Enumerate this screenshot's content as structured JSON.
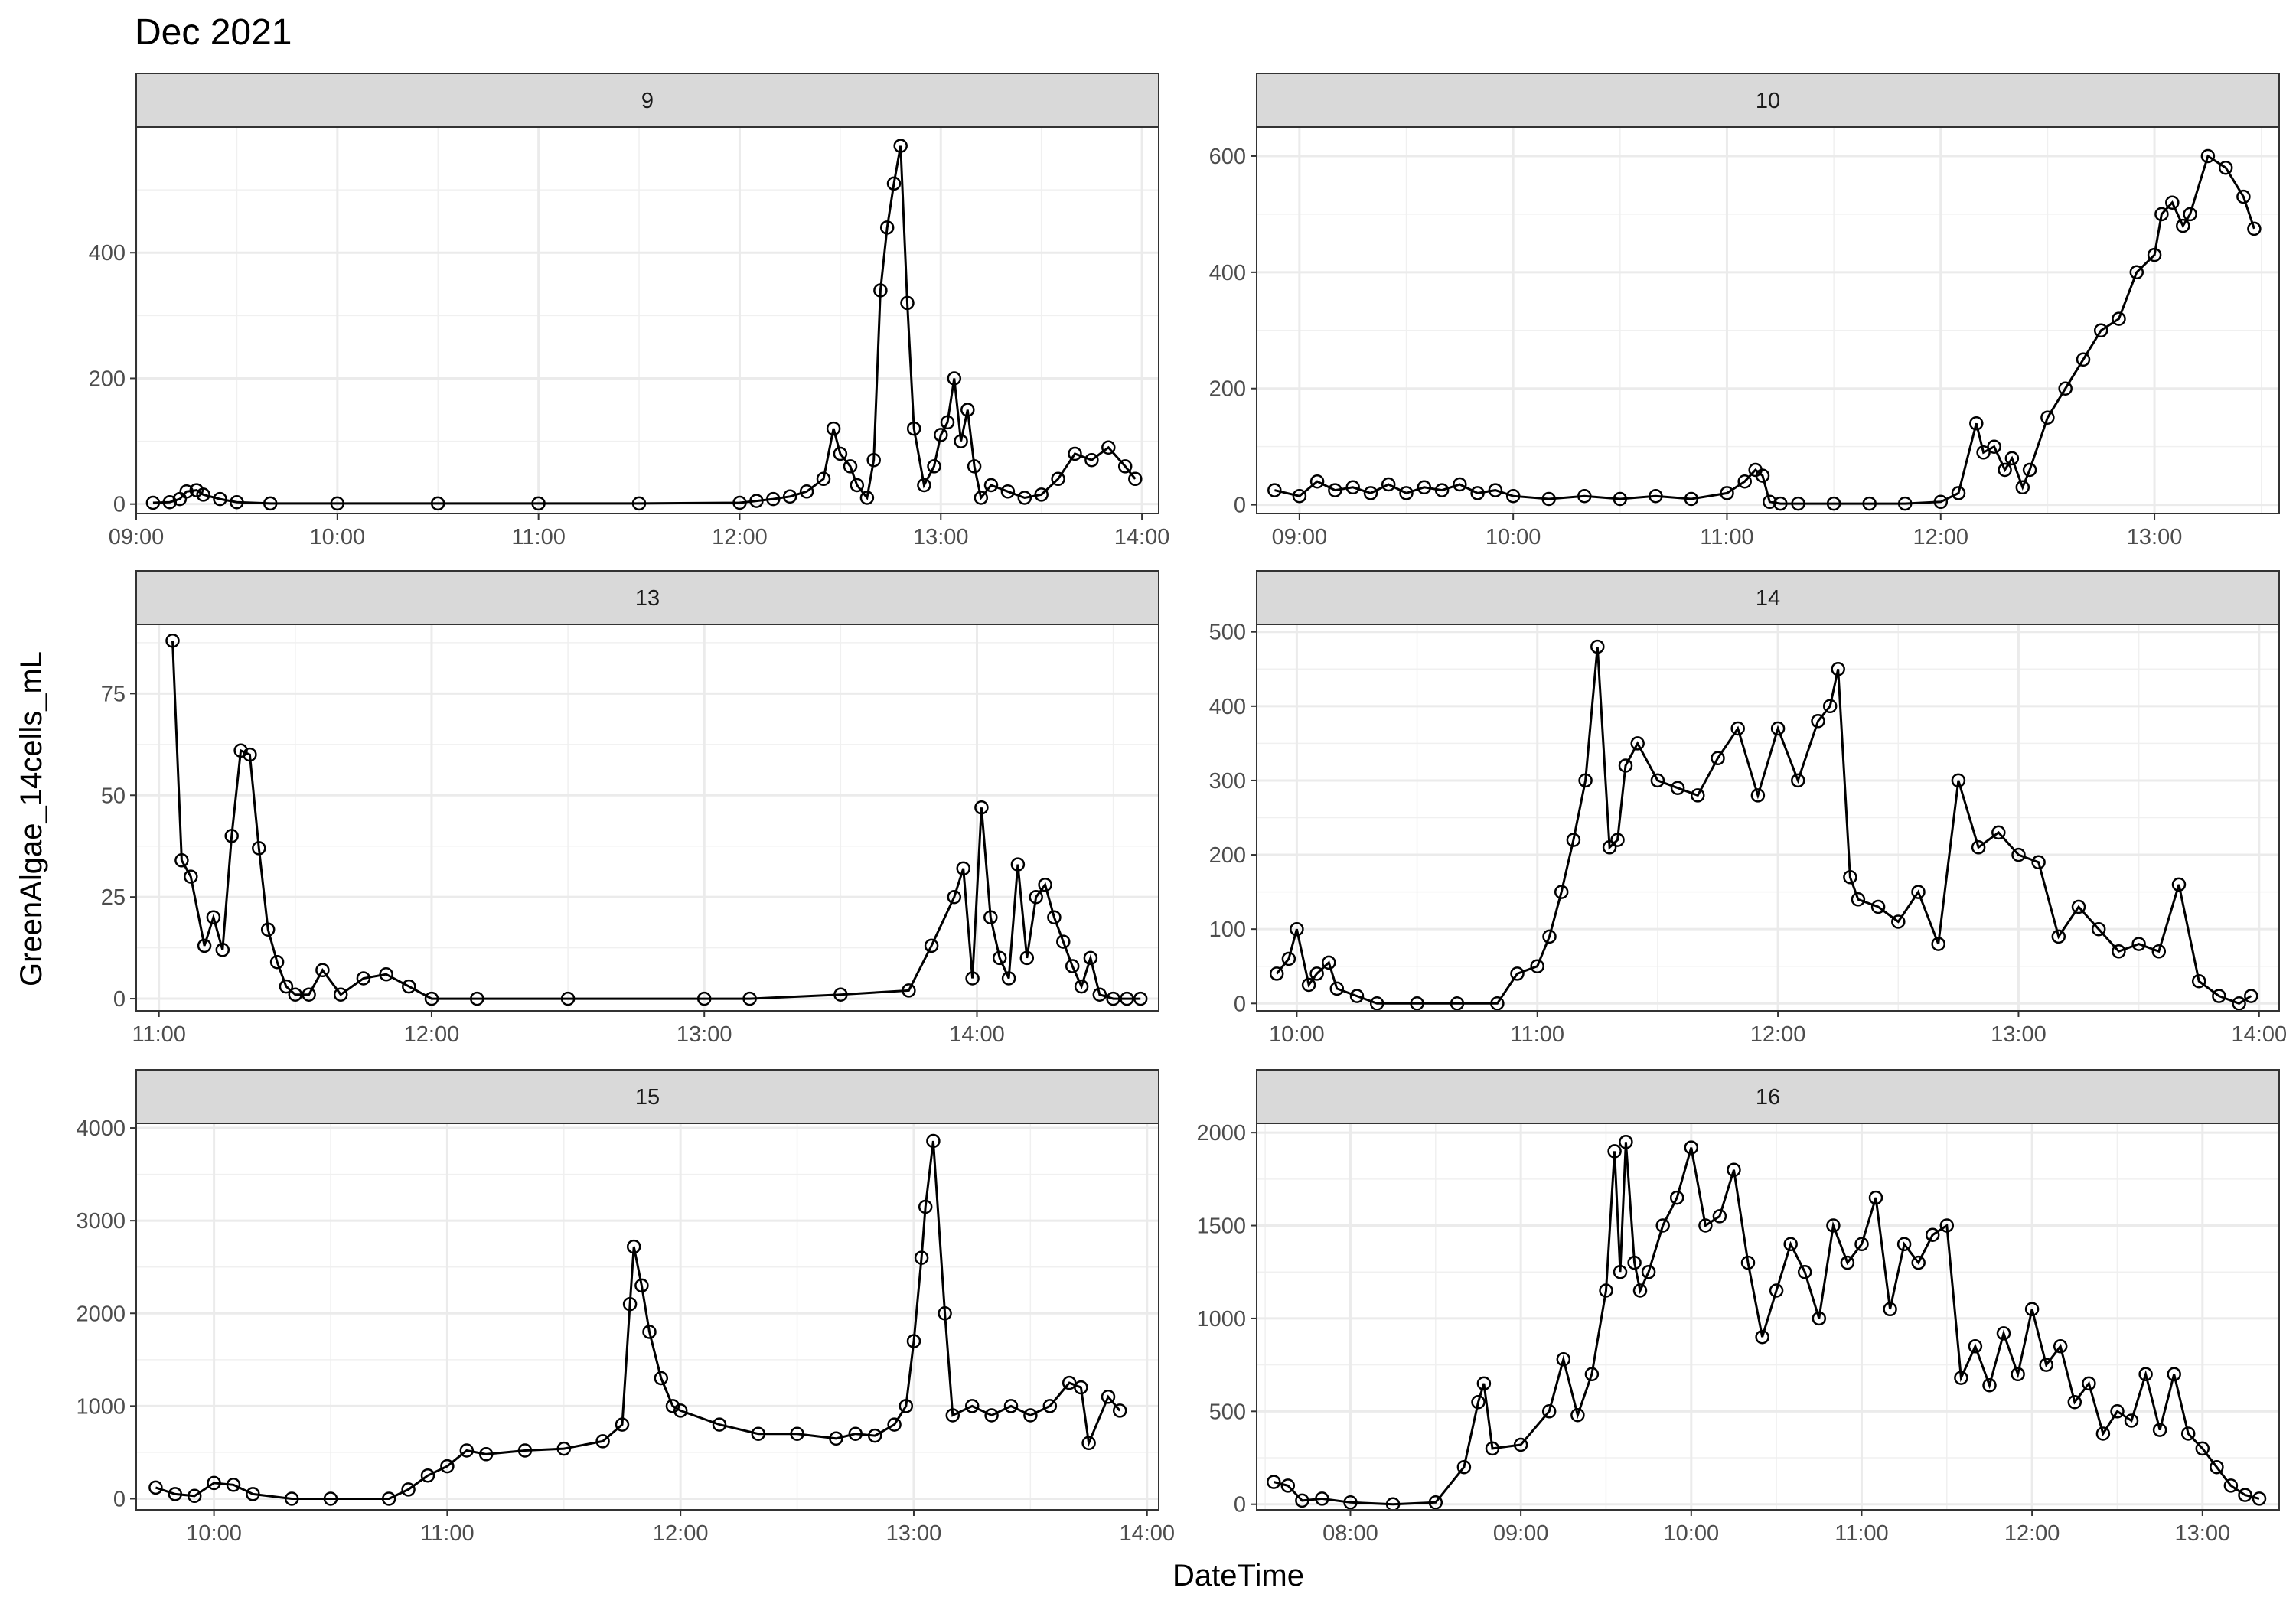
{
  "figure": {
    "title": "Dec 2021",
    "xlabel": "DateTime",
    "ylabel": "GreenAlgae_14cells_mL"
  },
  "chart_data": [
    {
      "type": "line",
      "panel": "9",
      "markers": "open-circle",
      "xlim": [
        "09:00",
        "14:05"
      ],
      "ylim": [
        -15,
        600
      ],
      "yticks": [
        0,
        200,
        400
      ],
      "xticks": [
        "09:00",
        "10:00",
        "11:00",
        "12:00",
        "13:00",
        "14:00"
      ],
      "series": [
        {
          "x": [
            "09:05",
            "09:10",
            "09:13",
            "09:15",
            "09:18",
            "09:20",
            "09:25",
            "09:30",
            "09:40",
            "10:00",
            "10:30",
            "11:00",
            "11:30",
            "12:00",
            "12:05",
            "12:10",
            "12:15",
            "12:20",
            "12:25",
            "12:28",
            "12:30",
            "12:33",
            "12:35",
            "12:38",
            "12:40",
            "12:42",
            "12:44",
            "12:46",
            "12:48",
            "12:50",
            "12:52",
            "12:55",
            "12:58",
            "13:00",
            "13:02",
            "13:04",
            "13:06",
            "13:08",
            "13:10",
            "13:12",
            "13:15",
            "13:20",
            "13:25",
            "13:30",
            "13:35",
            "13:40",
            "13:45",
            "13:50",
            "13:55",
            "13:58"
          ],
          "values": [
            2,
            3,
            8,
            20,
            22,
            15,
            8,
            3,
            1,
            1,
            1,
            1,
            1,
            2,
            5,
            8,
            12,
            20,
            40,
            120,
            80,
            60,
            30,
            10,
            70,
            340,
            440,
            510,
            570,
            320,
            120,
            30,
            60,
            110,
            130,
            200,
            100,
            150,
            60,
            10,
            30,
            20,
            10,
            15,
            40,
            80,
            70,
            90,
            60,
            40
          ]
        }
      ]
    },
    {
      "type": "line",
      "panel": "10",
      "markers": "open-circle",
      "xlim": [
        "08:48",
        "13:35"
      ],
      "ylim": [
        -15,
        650
      ],
      "yticks": [
        0,
        200,
        400,
        600
      ],
      "xticks": [
        "09:00",
        "10:00",
        "11:00",
        "12:00",
        "13:00"
      ],
      "series": [
        {
          "x": [
            "08:53",
            "09:00",
            "09:05",
            "09:10",
            "09:15",
            "09:20",
            "09:25",
            "09:30",
            "09:35",
            "09:40",
            "09:45",
            "09:50",
            "09:55",
            "10:00",
            "10:10",
            "10:20",
            "10:30",
            "10:40",
            "10:50",
            "11:00",
            "11:05",
            "11:08",
            "11:10",
            "11:12",
            "11:15",
            "11:20",
            "11:30",
            "11:40",
            "11:50",
            "12:00",
            "12:05",
            "12:10",
            "12:12",
            "12:15",
            "12:18",
            "12:20",
            "12:23",
            "12:25",
            "12:30",
            "12:35",
            "12:40",
            "12:45",
            "12:50",
            "12:55",
            "13:00",
            "13:02",
            "13:05",
            "13:08",
            "13:10",
            "13:15",
            "13:20",
            "13:25",
            "13:28"
          ],
          "values": [
            25,
            15,
            40,
            25,
            30,
            20,
            35,
            20,
            30,
            25,
            35,
            20,
            25,
            15,
            10,
            15,
            10,
            15,
            10,
            20,
            40,
            60,
            50,
            5,
            2,
            2,
            2,
            2,
            2,
            5,
            20,
            140,
            90,
            100,
            60,
            80,
            30,
            60,
            150,
            200,
            250,
            300,
            320,
            400,
            430,
            500,
            520,
            480,
            500,
            600,
            580,
            530,
            475
          ]
        }
      ]
    },
    {
      "type": "line",
      "panel": "13",
      "markers": "open-circle",
      "xlim": [
        "10:55",
        "14:40"
      ],
      "ylim": [
        -3,
        92
      ],
      "yticks": [
        0,
        25,
        50,
        75
      ],
      "xticks": [
        "11:00",
        "12:00",
        "13:00",
        "14:00"
      ],
      "series": [
        {
          "x": [
            "11:03",
            "11:05",
            "11:07",
            "11:10",
            "11:12",
            "11:14",
            "11:16",
            "11:18",
            "11:20",
            "11:22",
            "11:24",
            "11:26",
            "11:28",
            "11:30",
            "11:33",
            "11:36",
            "11:40",
            "11:45",
            "11:50",
            "11:55",
            "12:00",
            "12:10",
            "12:30",
            "13:00",
            "13:10",
            "13:30",
            "13:45",
            "13:50",
            "13:55",
            "13:57",
            "13:59",
            "14:01",
            "14:03",
            "14:05",
            "14:07",
            "14:09",
            "14:11",
            "14:13",
            "14:15",
            "14:17",
            "14:19",
            "14:21",
            "14:23",
            "14:25",
            "14:27",
            "14:30",
            "14:33",
            "14:36"
          ],
          "values": [
            88,
            34,
            30,
            13,
            20,
            12,
            40,
            61,
            60,
            37,
            17,
            9,
            3,
            1,
            1,
            7,
            1,
            5,
            6,
            3,
            0,
            0,
            0,
            0,
            0,
            1,
            2,
            13,
            25,
            32,
            5,
            47,
            20,
            10,
            5,
            33,
            10,
            25,
            28,
            20,
            14,
            8,
            3,
            10,
            1,
            0,
            0,
            0
          ]
        }
      ]
    },
    {
      "type": "line",
      "panel": "14",
      "markers": "open-circle",
      "xlim": [
        "09:50",
        "14:05"
      ],
      "ylim": [
        -10,
        510
      ],
      "yticks": [
        0,
        100,
        200,
        300,
        400,
        500
      ],
      "xticks": [
        "10:00",
        "11:00",
        "12:00",
        "13:00",
        "14:00"
      ],
      "series": [
        {
          "x": [
            "09:55",
            "09:58",
            "10:00",
            "10:03",
            "10:05",
            "10:08",
            "10:10",
            "10:15",
            "10:20",
            "10:30",
            "10:40",
            "10:50",
            "10:55",
            "11:00",
            "11:03",
            "11:06",
            "11:09",
            "11:12",
            "11:15",
            "11:18",
            "11:20",
            "11:22",
            "11:25",
            "11:30",
            "11:35",
            "11:40",
            "11:45",
            "11:50",
            "11:55",
            "12:00",
            "12:05",
            "12:10",
            "12:13",
            "12:15",
            "12:18",
            "12:20",
            "12:25",
            "12:30",
            "12:35",
            "12:40",
            "12:45",
            "12:50",
            "12:55",
            "13:00",
            "13:05",
            "13:10",
            "13:15",
            "13:20",
            "13:25",
            "13:30",
            "13:35",
            "13:40",
            "13:45",
            "13:50",
            "13:55",
            "13:58"
          ],
          "values": [
            40,
            60,
            100,
            25,
            40,
            55,
            20,
            10,
            0,
            0,
            0,
            0,
            40,
            50,
            90,
            150,
            220,
            300,
            480,
            210,
            220,
            320,
            350,
            300,
            290,
            280,
            330,
            370,
            280,
            370,
            300,
            380,
            400,
            450,
            170,
            140,
            130,
            110,
            150,
            80,
            300,
            210,
            230,
            200,
            190,
            90,
            130,
            100,
            70,
            80,
            70,
            160,
            30,
            10,
            0,
            10
          ]
        }
      ]
    },
    {
      "type": "line",
      "panel": "15",
      "markers": "open-circle",
      "xlim": [
        "09:40",
        "14:03"
      ],
      "ylim": [
        -120,
        4050
      ],
      "yticks": [
        0,
        1000,
        2000,
        3000,
        4000
      ],
      "xticks": [
        "10:00",
        "11:00",
        "12:00",
        "13:00",
        "14:00"
      ],
      "series": [
        {
          "x": [
            "09:45",
            "09:50",
            "09:55",
            "10:00",
            "10:05",
            "10:10",
            "10:20",
            "10:30",
            "10:45",
            "10:50",
            "10:55",
            "11:00",
            "11:05",
            "11:10",
            "11:20",
            "11:30",
            "11:40",
            "11:45",
            "11:47",
            "11:48",
            "11:50",
            "11:52",
            "11:55",
            "11:58",
            "12:00",
            "12:10",
            "12:20",
            "12:30",
            "12:40",
            "12:45",
            "12:50",
            "12:55",
            "12:58",
            "13:00",
            "13:02",
            "13:03",
            "13:05",
            "13:08",
            "13:10",
            "13:15",
            "13:20",
            "13:25",
            "13:30",
            "13:35",
            "13:40",
            "13:43",
            "13:45",
            "13:50",
            "13:53"
          ],
          "values": [
            120,
            50,
            30,
            170,
            150,
            50,
            0,
            0,
            0,
            100,
            250,
            350,
            520,
            480,
            520,
            540,
            620,
            800,
            2100,
            2720,
            2300,
            1800,
            1300,
            1000,
            950,
            800,
            700,
            700,
            650,
            700,
            680,
            800,
            1000,
            1700,
            2600,
            3150,
            3860,
            2000,
            900,
            1000,
            900,
            1000,
            900,
            1000,
            1250,
            1200,
            600,
            1100,
            950
          ]
        }
      ]
    },
    {
      "type": "line",
      "panel": "16",
      "markers": "open-circle",
      "xlim": [
        "07:27",
        "13:27"
      ],
      "ylim": [
        -30,
        2050
      ],
      "yticks": [
        0,
        500,
        1000,
        1500,
        2000
      ],
      "xticks": [
        "08:00",
        "09:00",
        "10:00",
        "11:00",
        "12:00",
        "13:00"
      ],
      "series": [
        {
          "x": [
            "07:33",
            "07:38",
            "07:43",
            "07:50",
            "08:00",
            "08:15",
            "08:30",
            "08:40",
            "08:45",
            "08:47",
            "08:50",
            "09:00",
            "09:10",
            "09:15",
            "09:20",
            "09:25",
            "09:30",
            "09:33",
            "09:35",
            "09:37",
            "09:40",
            "09:42",
            "09:45",
            "09:50",
            "09:55",
            "10:00",
            "10:05",
            "10:10",
            "10:15",
            "10:20",
            "10:25",
            "10:30",
            "10:35",
            "10:40",
            "10:45",
            "10:50",
            "10:55",
            "11:00",
            "11:05",
            "11:10",
            "11:15",
            "11:20",
            "11:25",
            "11:30",
            "11:35",
            "11:40",
            "11:45",
            "11:50",
            "11:55",
            "12:00",
            "12:05",
            "12:10",
            "12:15",
            "12:20",
            "12:25",
            "12:30",
            "12:35",
            "12:40",
            "12:45",
            "12:50",
            "12:55",
            "13:00",
            "13:05",
            "13:10",
            "13:15",
            "13:20"
          ],
          "values": [
            120,
            100,
            20,
            30,
            10,
            0,
            10,
            200,
            550,
            650,
            300,
            320,
            500,
            780,
            480,
            700,
            1150,
            1900,
            1250,
            1950,
            1300,
            1150,
            1250,
            1500,
            1650,
            1920,
            1500,
            1550,
            1800,
            1300,
            900,
            1150,
            1400,
            1250,
            1000,
            1500,
            1300,
            1400,
            1650,
            1050,
            1400,
            1300,
            1450,
            1500,
            680,
            850,
            640,
            920,
            700,
            1050,
            750,
            850,
            550,
            650,
            380,
            500,
            450,
            700,
            400,
            700,
            380,
            300,
            200,
            100,
            50,
            30
          ]
        }
      ]
    }
  ]
}
